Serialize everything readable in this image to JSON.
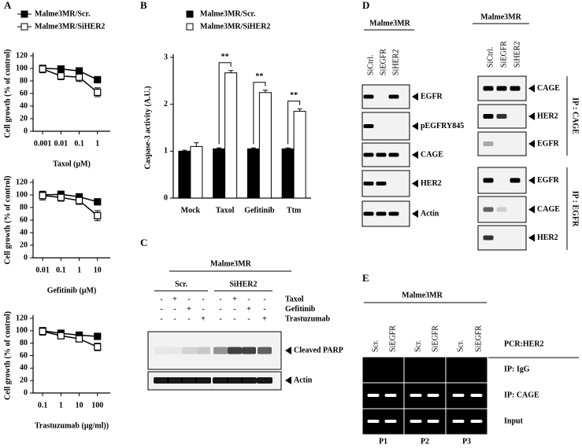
{
  "panel_letters": [
    "A",
    "B",
    "C",
    "D",
    "E"
  ],
  "chart_data": [
    {
      "type": "line",
      "xscale": "log",
      "x": [
        0.001,
        0.01,
        0.1,
        1
      ],
      "xlim": [
        0.0003,
        5
      ],
      "xticks": [
        0.001,
        0.01,
        0.1,
        1
      ],
      "ylim": [
        0,
        120
      ],
      "yticks": [
        0,
        20,
        40,
        60,
        80,
        100,
        120
      ],
      "xlabel": "Taxol (μM)",
      "ylabel": "Cell growth (% of control)",
      "series": [
        {
          "name": "Malme3MR/Scr.",
          "color": "#000000",
          "marker_fill": "#000000",
          "values": [
            100,
            99,
            96,
            82
          ],
          "errors": [
            5,
            4,
            4,
            4
          ]
        },
        {
          "name": "Malme3MR/SiHER2",
          "color": "#000000",
          "marker_fill": "#ffffff",
          "values": [
            99,
            88,
            86,
            62
          ],
          "errors": [
            6,
            6,
            7,
            7
          ]
        }
      ]
    },
    {
      "type": "line",
      "xscale": "log",
      "x": [
        0.01,
        0.1,
        1,
        10
      ],
      "xlim": [
        0.003,
        50
      ],
      "xticks": [
        0.01,
        0.1,
        1,
        10
      ],
      "ylim": [
        0,
        120
      ],
      "yticks": [
        0,
        20,
        40,
        60,
        80,
        100,
        120
      ],
      "xlabel": "Gefitinib (μM)",
      "ylabel": "Cell growth (% of control)",
      "series": [
        {
          "color": "#000000",
          "marker_fill": "#000000",
          "values": [
            100,
            101,
            97,
            89
          ],
          "errors": [
            5,
            4,
            4,
            3
          ]
        },
        {
          "color": "#000000",
          "marker_fill": "#ffffff",
          "values": [
            99,
            96,
            91,
            67
          ],
          "errors": [
            7,
            6,
            6,
            8
          ]
        }
      ]
    },
    {
      "type": "line",
      "xscale": "log",
      "x": [
        0.1,
        1,
        10,
        100
      ],
      "xlim": [
        0.03,
        500
      ],
      "xticks": [
        0.1,
        1,
        10,
        100
      ],
      "ylim": [
        0,
        120
      ],
      "yticks": [
        0,
        20,
        40,
        60,
        80,
        100,
        120
      ],
      "xlabel": "Trastuzumab (μg/ml))",
      "ylabel": "Cell growth (% of control)",
      "series": [
        {
          "color": "#000000",
          "marker_fill": "#000000",
          "values": [
            100,
            96,
            93,
            91
          ],
          "errors": [
            5,
            4,
            4,
            3
          ]
        },
        {
          "color": "#000000",
          "marker_fill": "#ffffff",
          "values": [
            99,
            92,
            87,
            74
          ],
          "errors": [
            6,
            5,
            5,
            6
          ]
        }
      ]
    },
    {
      "type": "bar",
      "categories": [
        "Mock",
        "Taxol",
        "Gefitinib",
        "Ttm"
      ],
      "ylim": [
        0,
        3
      ],
      "yticks": [
        0,
        1,
        2,
        3
      ],
      "ylabel": "Caspase-3 activity (A.U.)",
      "annotations": [
        "**",
        "**",
        "**"
      ],
      "series": [
        {
          "name": "Malme3MR/Scr.",
          "color": "#000000",
          "values": [
            1.0,
            1.05,
            1.05,
            1.05
          ],
          "errors": [
            0.02,
            0.02,
            0.02,
            0.02
          ]
        },
        {
          "name": "Malme3MR/SiHER2",
          "color": "#ffffff",
          "values": [
            1.1,
            2.67,
            2.25,
            1.85
          ],
          "errors": [
            0.08,
            0.05,
            0.05,
            0.05
          ]
        }
      ]
    }
  ],
  "blot_c": {
    "title": "Malme3MR",
    "groups": [
      "Scr.",
      "SiHER2"
    ],
    "treatments": [
      {
        "name": "Taxol",
        "signs": [
          "-",
          "+",
          "-",
          "-",
          "-",
          "+",
          "-",
          "-"
        ]
      },
      {
        "name": "Gefitinib",
        "signs": [
          "-",
          "-",
          "+",
          "-",
          "-",
          "-",
          "+",
          "-"
        ]
      },
      {
        "name": "Trastuzumab",
        "signs": [
          "-",
          "-",
          "-",
          "+",
          "-",
          "-",
          "-",
          "+"
        ]
      }
    ],
    "bands": [
      "Cleaved PARP",
      "Actin"
    ]
  },
  "blot_d": {
    "left": {
      "title": "Malme3MR",
      "lanes": [
        "SiCtrl.",
        "SiEGFR",
        "SiHER2"
      ],
      "bands": [
        "EGFR",
        "pEGFRY845",
        "CAGE",
        "HER2",
        "Actin"
      ]
    },
    "right": {
      "title": "Malme3MR",
      "lanes": [
        "SiCtrl.",
        "SiEGFR",
        "SiHER2"
      ],
      "ip_groups": [
        {
          "label": "IP : CAGE",
          "bands": [
            "CAGE",
            "HER2",
            "EGFR"
          ]
        },
        {
          "label": "IP : EGFR",
          "bands": [
            "EGFR",
            "CAGE",
            "HER2"
          ]
        }
      ]
    }
  },
  "blot_e": {
    "title": "Malme3MR",
    "lanes": [
      "Scr.",
      "SiEGFR",
      "Scr.",
      "SiEGFR",
      "Scr.",
      "SiEGFR"
    ],
    "pcr": "PCR:HER2",
    "rows": [
      "IP: IgG",
      "IP: CAGE",
      "Input"
    ],
    "groups": [
      "P1",
      "P2",
      "P3"
    ]
  }
}
